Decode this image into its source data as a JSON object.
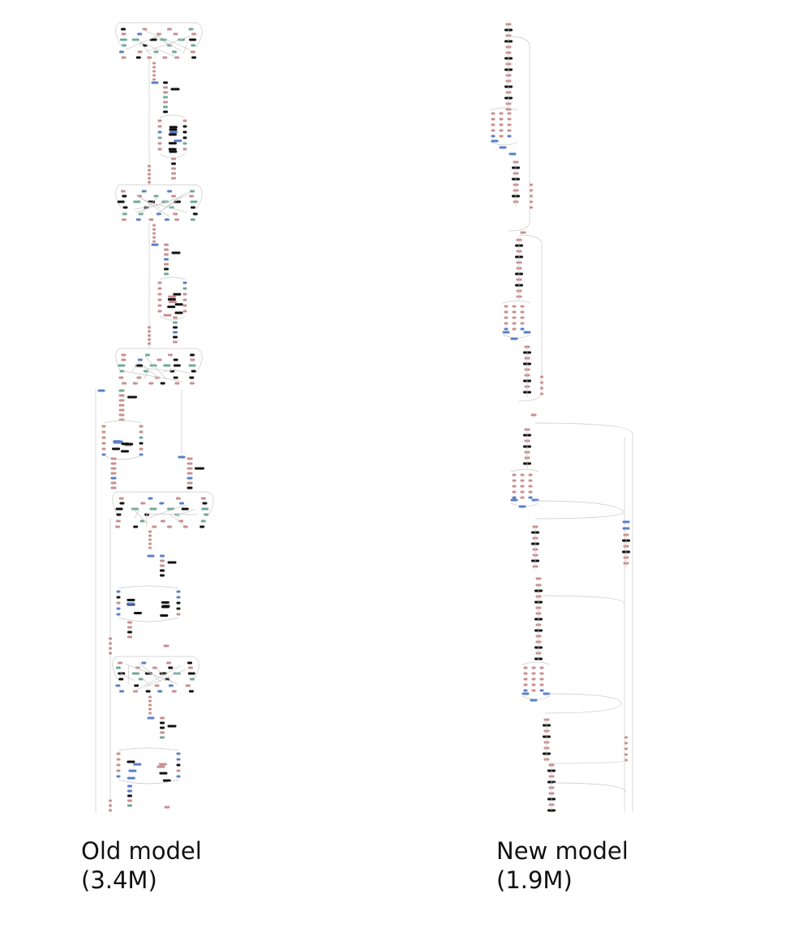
{
  "models": [
    {
      "id": "old",
      "label": "Old model",
      "params": "(3.4M)",
      "blocks": 5,
      "style": "wide-branching"
    },
    {
      "id": "new",
      "label": "New model",
      "params": "(1.9M)",
      "blocks": 5,
      "style": "narrow-sequential"
    }
  ],
  "node_colors": {
    "pink": "#c98f8f",
    "blue": "#5b7fc7",
    "teal": "#6fa89a",
    "black": "#111111",
    "edge": "#c8c8c8"
  }
}
